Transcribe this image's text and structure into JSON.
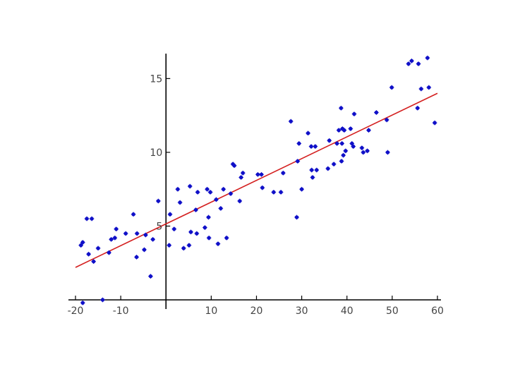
{
  "chart_data": {
    "type": "scatter",
    "title": "",
    "xlabel": "",
    "ylabel": "",
    "xlim": [
      -20,
      60
    ],
    "ylim": [
      0,
      16.5
    ],
    "xticks": [
      -20,
      -10,
      10,
      20,
      30,
      40,
      50,
      60
    ],
    "xtick_labels": [
      "-20",
      "-10",
      "10",
      "20",
      "30",
      "40",
      "50",
      "60"
    ],
    "yticks": [
      5,
      10,
      15
    ],
    "ytick_labels": [
      "5",
      "10",
      "15"
    ],
    "grid": false,
    "axes_through_origin": true,
    "colors": {
      "points": "#1010c8",
      "fit_line": "#d42020",
      "axes": "#000000"
    },
    "fit_line": {
      "x": [
        -20,
        60
      ],
      "y": [
        2.2,
        14.0
      ]
    },
    "series": [
      {
        "points": [
          [
            -18.8,
            3.7
          ],
          [
            -18.4,
            3.9
          ],
          [
            -18.4,
            -0.2
          ],
          [
            -17.5,
            5.5
          ],
          [
            -17.1,
            3.1
          ],
          [
            -16.4,
            5.5
          ],
          [
            -16.0,
            2.6
          ],
          [
            -15.0,
            3.5
          ],
          [
            -14.0,
            0.0
          ],
          [
            -12.6,
            3.2
          ],
          [
            -12.1,
            4.1
          ],
          [
            -11.3,
            4.2
          ],
          [
            -11.0,
            4.8
          ],
          [
            -8.9,
            4.5
          ],
          [
            -7.2,
            5.8
          ],
          [
            -6.5,
            2.9
          ],
          [
            -6.4,
            4.5
          ],
          [
            -4.8,
            3.4
          ],
          [
            -4.5,
            4.4
          ],
          [
            -3.4,
            1.6
          ],
          [
            -2.9,
            4.1
          ],
          [
            -1.7,
            6.7
          ],
          [
            0.7,
            3.7
          ],
          [
            0.9,
            5.8
          ],
          [
            1.8,
            4.8
          ],
          [
            2.6,
            7.5
          ],
          [
            3.1,
            6.6
          ],
          [
            3.9,
            3.5
          ],
          [
            5.1,
            3.7
          ],
          [
            5.3,
            7.7
          ],
          [
            5.5,
            4.6
          ],
          [
            6.6,
            6.1
          ],
          [
            6.8,
            4.5
          ],
          [
            7.0,
            7.3
          ],
          [
            8.6,
            4.9
          ],
          [
            9.1,
            7.5
          ],
          [
            9.4,
            5.6
          ],
          [
            9.5,
            4.2
          ],
          [
            9.8,
            7.3
          ],
          [
            11.1,
            6.8
          ],
          [
            11.5,
            3.8
          ],
          [
            12.1,
            6.2
          ],
          [
            12.7,
            7.5
          ],
          [
            13.4,
            4.2
          ],
          [
            14.3,
            7.2
          ],
          [
            14.8,
            9.2
          ],
          [
            15.1,
            9.1
          ],
          [
            16.3,
            6.7
          ],
          [
            16.6,
            8.3
          ],
          [
            17.0,
            8.6
          ],
          [
            20.3,
            8.5
          ],
          [
            21.1,
            8.5
          ],
          [
            21.3,
            7.6
          ],
          [
            23.8,
            7.3
          ],
          [
            25.4,
            7.3
          ],
          [
            25.9,
            8.6
          ],
          [
            27.6,
            12.1
          ],
          [
            28.9,
            5.6
          ],
          [
            29.1,
            9.4
          ],
          [
            29.4,
            10.6
          ],
          [
            30.0,
            7.5
          ],
          [
            31.4,
            11.3
          ],
          [
            32.1,
            10.4
          ],
          [
            32.2,
            8.8
          ],
          [
            32.4,
            8.3
          ],
          [
            33.0,
            10.4
          ],
          [
            33.3,
            8.8
          ],
          [
            35.8,
            8.9
          ],
          [
            36.1,
            10.8
          ],
          [
            37.1,
            9.2
          ],
          [
            37.8,
            10.6
          ],
          [
            38.2,
            11.5
          ],
          [
            38.7,
            13.0
          ],
          [
            38.8,
            9.4
          ],
          [
            38.9,
            10.6
          ],
          [
            39.0,
            11.6
          ],
          [
            39.2,
            9.8
          ],
          [
            39.4,
            11.5
          ],
          [
            39.7,
            10.1
          ],
          [
            40.8,
            11.6
          ],
          [
            41.1,
            10.6
          ],
          [
            41.4,
            10.4
          ],
          [
            41.6,
            12.6
          ],
          [
            43.3,
            10.3
          ],
          [
            43.6,
            10.0
          ],
          [
            44.5,
            10.1
          ],
          [
            44.8,
            11.5
          ],
          [
            46.5,
            12.7
          ],
          [
            48.8,
            12.2
          ],
          [
            49.0,
            10.0
          ],
          [
            49.9,
            14.4
          ],
          [
            53.6,
            16.0
          ],
          [
            54.3,
            16.2
          ],
          [
            55.6,
            13.0
          ],
          [
            55.8,
            16.0
          ],
          [
            56.4,
            14.3
          ],
          [
            57.8,
            16.4
          ],
          [
            58.1,
            14.4
          ],
          [
            59.4,
            12.0
          ]
        ]
      }
    ]
  }
}
